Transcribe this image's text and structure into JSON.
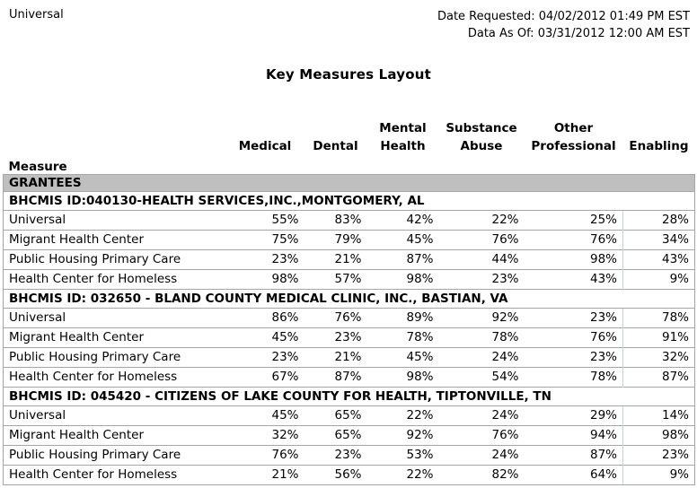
{
  "meta": {
    "scope": "Universal",
    "date_requested": "Date Requested: 04/02/2012 01:49 PM EST",
    "data_as_of": "Data As Of: 03/31/2012 12:00 AM EST"
  },
  "title": "Key Measures Layout",
  "table": {
    "measure_header": "Measure",
    "section_header": "GRANTEES",
    "columns": [
      {
        "line1": "",
        "line2": "Medical"
      },
      {
        "line1": "",
        "line2": "Dental"
      },
      {
        "line1": "Mental",
        "line2": "Health"
      },
      {
        "line1": "Substance",
        "line2": "Abuse"
      },
      {
        "line1": "Other",
        "line2": "Professional"
      },
      {
        "line1": "",
        "line2": "Enabling"
      }
    ],
    "grantees": [
      {
        "id_line": "BHCMIS ID:040130-HEALTH SERVICES,INC.,MONTGOMERY, AL",
        "rows": [
          {
            "measure": "Universal",
            "values": [
              "55%",
              "83%",
              "42%",
              "22%",
              "25%",
              "28%"
            ]
          },
          {
            "measure": "Migrant Health Center",
            "values": [
              "75%",
              "79%",
              "45%",
              "76%",
              "76%",
              "34%"
            ]
          },
          {
            "measure": "Public Housing Primary Care",
            "values": [
              "23%",
              "21%",
              "87%",
              "44%",
              "98%",
              "43%"
            ]
          },
          {
            "measure": "Health Center for Homeless",
            "values": [
              "98%",
              "57%",
              "98%",
              "23%",
              "43%",
              "9%"
            ]
          }
        ]
      },
      {
        "id_line": "BHCMIS ID: 032650 - BLAND COUNTY MEDICAL CLINIC, INC., BASTIAN, VA",
        "rows": [
          {
            "measure": "Universal",
            "values": [
              "86%",
              "76%",
              "89%",
              "92%",
              "23%",
              "78%"
            ]
          },
          {
            "measure": "Migrant Health Center",
            "values": [
              "45%",
              "23%",
              "78%",
              "78%",
              "76%",
              "91%"
            ]
          },
          {
            "measure": "Public Housing Primary Care",
            "values": [
              "23%",
              "21%",
              "45%",
              "24%",
              "23%",
              "32%"
            ]
          },
          {
            "measure": "Health Center for Homeless",
            "values": [
              "67%",
              "87%",
              "98%",
              "54%",
              "78%",
              "87%"
            ]
          }
        ]
      },
      {
        "id_line": "BHCMIS ID: 045420 - CITIZENS OF LAKE COUNTY FOR HEALTH, TIPTONVILLE, TN",
        "rows": [
          {
            "measure": "Universal",
            "values": [
              "45%",
              "65%",
              "22%",
              "24%",
              "29%",
              "14%"
            ]
          },
          {
            "measure": "Migrant Health Center",
            "values": [
              "32%",
              "65%",
              "92%",
              "76%",
              "94%",
              "98%"
            ]
          },
          {
            "measure": "Public Housing Primary Care",
            "values": [
              "76%",
              "23%",
              "53%",
              "24%",
              "87%",
              "23%"
            ]
          },
          {
            "measure": "Health Center for Homeless",
            "values": [
              "21%",
              "56%",
              "22%",
              "82%",
              "64%",
              "9%"
            ]
          }
        ]
      }
    ]
  },
  "colors": {
    "section_header_bg": "#bfbfbf",
    "row_border": "#a6a6a6",
    "text": "#000000"
  }
}
